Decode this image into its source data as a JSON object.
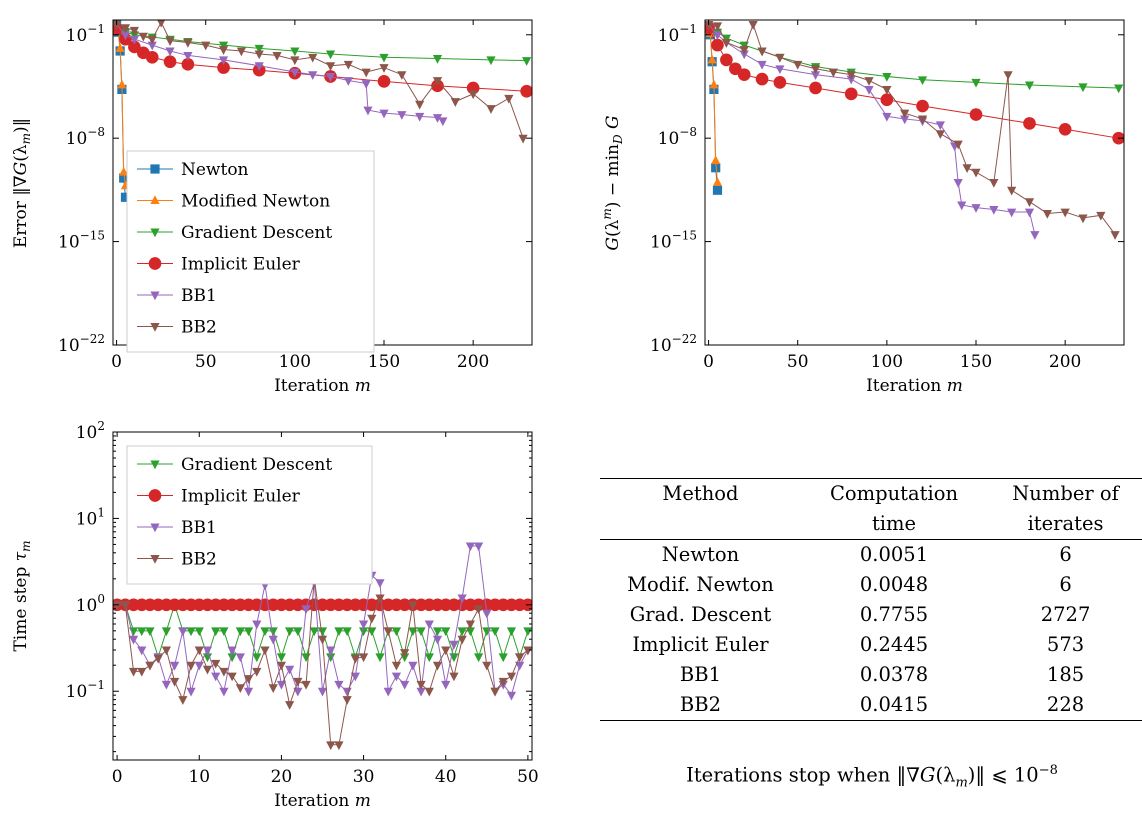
{
  "colors": {
    "Newton": "#1f77b4",
    "Modified Newton": "#ff7f0e",
    "Gradient Descent": "#2ca02c",
    "Implicit Euler": "#d62728",
    "BB1": "#9467bd",
    "BB2": "#8c564b"
  },
  "markers": {
    "Newton": "square",
    "Modified Newton": "triangle-up",
    "Gradient Descent": "triangle-down",
    "Implicit Euler": "circle",
    "BB1": "triangle-down",
    "BB2": "triangle-down"
  },
  "chart_data": [
    {
      "type": "line",
      "yscale": "log",
      "xlabel": "Iteration m",
      "ylabel": "Error ‖∇G(λ_m)‖",
      "xlim": [
        -2,
        233
      ],
      "ylim": [
        1e-22,
        1
      ],
      "xticks": [
        0,
        50,
        100,
        150,
        200
      ],
      "yticks": [
        {
          "v": 0.1,
          "label": "10^-1"
        },
        {
          "v": 1e-08,
          "label": "10^-8"
        },
        {
          "v": 1e-15,
          "label": "10^-15"
        },
        {
          "v": 1e-22,
          "label": "10^-22"
        }
      ],
      "legend": {
        "placement": "lower-left",
        "entries": [
          "Newton",
          "Modified Newton",
          "Gradient Descent",
          "Implicit Euler",
          "BB1",
          "BB2"
        ]
      },
      "series": [
        {
          "name": "Newton",
          "x": [
            0,
            1,
            2,
            3,
            4,
            5
          ],
          "y": [
            0.5,
            0.15,
            0.008,
            2e-05,
            2e-11,
            1e-12
          ]
        },
        {
          "name": "Modified Newton",
          "x": [
            0,
            1,
            2,
            3,
            4,
            5
          ],
          "y": [
            0.5,
            0.2,
            0.012,
            4e-05,
            5e-11,
            6e-12
          ]
        },
        {
          "name": "Gradient Descent",
          "x": [
            0,
            5,
            10,
            20,
            30,
            40,
            60,
            80,
            100,
            120,
            150,
            180,
            210,
            230
          ],
          "y": [
            0.4,
            0.15,
            0.1,
            0.07,
            0.05,
            0.035,
            0.02,
            0.012,
            0.008,
            0.005,
            0.003,
            0.0025,
            0.002,
            0.0018
          ]
        },
        {
          "name": "Implicit Euler",
          "x": [
            0,
            5,
            10,
            15,
            20,
            30,
            40,
            60,
            80,
            100,
            120,
            150,
            180,
            200,
            230
          ],
          "y": [
            0.25,
            0.05,
            0.015,
            0.006,
            0.003,
            0.0015,
            0.001,
            0.0006,
            0.0004,
            0.00025,
            0.00015,
            7e-05,
            3.5e-05,
            2.5e-05,
            1.5e-05
          ]
        },
        {
          "name": "BB1",
          "x": [
            0,
            5,
            10,
            20,
            30,
            40,
            60,
            80,
            100,
            110,
            120,
            130,
            140,
            141,
            150,
            160,
            170,
            180,
            183
          ],
          "y": [
            0.5,
            0.1,
            0.05,
            0.02,
            0.008,
            0.004,
            0.002,
            0.0008,
            0.0003,
            0.0002,
            0.00015,
            8e-05,
            5e-05,
            8e-07,
            5e-07,
            4e-07,
            3e-07,
            2.5e-07,
            1.5e-07
          ]
        },
        {
          "name": "BB2",
          "x": [
            0,
            5,
            10,
            15,
            20,
            25,
            30,
            40,
            50,
            60,
            70,
            80,
            90,
            100,
            110,
            120,
            130,
            140,
            150,
            160,
            170,
            180,
            190,
            200,
            210,
            220,
            228
          ],
          "y": [
            0.5,
            0.3,
            0.2,
            0.08,
            0.05,
            0.7,
            0.04,
            0.03,
            0.02,
            0.01,
            0.008,
            0.005,
            0.004,
            0.002,
            0.003,
            0.0008,
            0.001,
            0.0003,
            0.0006,
            0.0002,
            2e-06,
            8e-05,
            3e-06,
            1e-05,
            1e-06,
            5e-06,
            1e-08
          ]
        }
      ]
    },
    {
      "type": "line",
      "yscale": "log",
      "xlabel": "Iteration m",
      "ylabel": "G(λ^m) − min_D G",
      "xlim": [
        -2,
        233
      ],
      "ylim": [
        1e-22,
        1
      ],
      "xticks": [
        0,
        50,
        100,
        150,
        200
      ],
      "yticks": [
        {
          "v": 0.1,
          "label": "10^-1"
        },
        {
          "v": 1e-08,
          "label": "10^-8"
        },
        {
          "v": 1e-15,
          "label": "10^-15"
        },
        {
          "v": 1e-22,
          "label": "10^-22"
        }
      ],
      "series": [
        {
          "name": "Newton",
          "x": [
            0,
            1,
            2,
            3,
            4,
            5
          ],
          "y": [
            0.3,
            0.1,
            0.0015,
            2e-05,
            1e-10,
            3e-12
          ]
        },
        {
          "name": "Modified Newton",
          "x": [
            0,
            1,
            2,
            3,
            4,
            5
          ],
          "y": [
            0.3,
            0.12,
            0.002,
            4e-05,
            3e-10,
            1e-11
          ]
        },
        {
          "name": "Gradient Descent",
          "x": [
            0,
            5,
            10,
            20,
            30,
            40,
            60,
            80,
            100,
            120,
            150,
            180,
            210,
            230
          ],
          "y": [
            0.4,
            0.15,
            0.06,
            0.02,
            0.008,
            0.003,
            0.0007,
            0.0003,
            0.00015,
            9e-05,
            6e-05,
            4e-05,
            3e-05,
            2.5e-05
          ]
        },
        {
          "name": "Implicit Euler",
          "x": [
            0,
            5,
            10,
            15,
            20,
            30,
            40,
            60,
            80,
            100,
            120,
            150,
            180,
            200,
            230
          ],
          "y": [
            0.3,
            0.02,
            0.002,
            0.0005,
            0.0002,
            0.0001,
            6e-05,
            2.5e-05,
            1e-05,
            4e-06,
            1.5e-06,
            4e-07,
            1e-07,
            4e-08,
            1e-08
          ]
        },
        {
          "name": "BB1",
          "x": [
            0,
            5,
            10,
            20,
            30,
            40,
            60,
            80,
            90,
            100,
            110,
            120,
            130,
            138,
            140,
            142,
            150,
            160,
            170,
            180,
            183
          ],
          "y": [
            0.5,
            0.1,
            0.03,
            0.005,
            0.001,
            0.0005,
            0.0002,
            0.0001,
            2e-05,
            3e-07,
            2e-07,
            1.5e-07,
            8e-08,
            3e-09,
            1e-11,
            3e-13,
            2e-13,
            1.5e-13,
            1e-13,
            1e-13,
            3e-15
          ]
        },
        {
          "name": "BB2",
          "x": [
            0,
            5,
            10,
            20,
            25,
            30,
            40,
            50,
            60,
            70,
            80,
            90,
            100,
            110,
            120,
            130,
            140,
            145,
            150,
            160,
            168,
            170,
            180,
            190,
            200,
            210,
            220,
            228
          ],
          "y": [
            0.5,
            0.4,
            0.03,
            0.01,
            0.5,
            0.008,
            0.003,
            0.001,
            0.0005,
            0.0003,
            0.0002,
            8e-05,
            2e-05,
            5e-07,
            2e-07,
            2e-08,
            4e-09,
            1e-10,
            5e-11,
            1e-11,
            0.0002,
            3e-12,
            5e-13,
            8e-14,
            1e-13,
            4e-14,
            6e-14,
            3e-15
          ]
        }
      ]
    },
    {
      "type": "line",
      "yscale": "log",
      "xlabel": "Iteration m",
      "ylabel": "Time step τ_m",
      "xlim": [
        -0.5,
        50.5
      ],
      "ylim": [
        0.016,
        100
      ],
      "xticks": [
        0,
        10,
        20,
        30,
        40,
        50
      ],
      "yticks": [
        {
          "v": 100,
          "label": "10^2"
        },
        {
          "v": 10,
          "label": "10^1"
        },
        {
          "v": 1,
          "label": "10^0"
        },
        {
          "v": 0.1,
          "label": "10^-1"
        }
      ],
      "legend": {
        "placement": "upper-left",
        "entries": [
          "Gradient Descent",
          "Implicit Euler",
          "BB1",
          "BB2"
        ]
      },
      "series": [
        {
          "name": "Gradient Descent",
          "x": [
            0,
            1,
            2,
            3,
            4,
            5,
            6,
            7,
            8,
            9,
            10,
            11,
            12,
            13,
            14,
            15,
            16,
            17,
            18,
            19,
            20,
            21,
            22,
            23,
            24,
            25,
            26,
            27,
            28,
            29,
            30,
            31,
            32,
            33,
            34,
            35,
            36,
            37,
            38,
            39,
            40,
            41,
            42,
            43,
            44,
            45,
            46,
            47,
            48,
            49,
            50
          ],
          "y": [
            1,
            1,
            0.5,
            0.5,
            0.5,
            0.25,
            0.5,
            1,
            0.5,
            0.5,
            0.5,
            0.25,
            0.5,
            0.5,
            0.25,
            0.5,
            0.5,
            0.25,
            0.5,
            0.5,
            0.25,
            0.5,
            0.5,
            0.25,
            0.5,
            0.5,
            0.25,
            0.5,
            0.5,
            0.25,
            0.5,
            0.5,
            0.25,
            0.5,
            0.5,
            0.25,
            0.5,
            0.5,
            0.25,
            0.5,
            0.5,
            0.25,
            0.5,
            0.5,
            0.25,
            0.5,
            0.5,
            0.25,
            0.5,
            0.25,
            0.5
          ]
        },
        {
          "name": "Implicit Euler",
          "x": [
            0,
            1,
            2,
            3,
            4,
            5,
            6,
            7,
            8,
            9,
            10,
            11,
            12,
            13,
            14,
            15,
            16,
            17,
            18,
            19,
            20,
            21,
            22,
            23,
            24,
            25,
            26,
            27,
            28,
            29,
            30,
            31,
            32,
            33,
            34,
            35,
            36,
            37,
            38,
            39,
            40,
            41,
            42,
            43,
            44,
            45,
            46,
            47,
            48,
            49,
            50
          ],
          "y": [
            1,
            1,
            1,
            1,
            1,
            1,
            1,
            1,
            1,
            1,
            1,
            1,
            1,
            1,
            1,
            1,
            1,
            1,
            1,
            1,
            1,
            1,
            1,
            1,
            1,
            1,
            1,
            1,
            1,
            1,
            1,
            1,
            1,
            1,
            1,
            1,
            1,
            1,
            1,
            1,
            1,
            1,
            1,
            1,
            1,
            1,
            1,
            1,
            1,
            1,
            1
          ]
        },
        {
          "name": "BB1",
          "x": [
            0,
            1,
            2,
            3,
            4,
            5,
            6,
            7,
            8,
            9,
            10,
            11,
            12,
            13,
            14,
            15,
            16,
            17,
            18,
            19,
            20,
            21,
            22,
            23,
            24,
            25,
            26,
            27,
            28,
            29,
            30,
            31,
            32,
            33,
            34,
            35,
            36,
            37,
            38,
            39,
            40,
            41,
            42,
            43,
            44,
            45,
            46,
            47,
            48,
            49,
            50
          ],
          "y": [
            1,
            1,
            0.4,
            0.3,
            0.2,
            0.25,
            0.12,
            0.2,
            0.5,
            0.1,
            0.2,
            0.3,
            0.15,
            0.1,
            0.3,
            0.25,
            0.1,
            0.6,
            1.7,
            0.4,
            0.12,
            0.18,
            0.1,
            0.9,
            1.8,
            0.1,
            0.3,
            0.12,
            0.1,
            0.15,
            0.6,
            2.2,
            1.8,
            0.1,
            0.15,
            0.12,
            0.2,
            0.1,
            0.6,
            0.4,
            0.12,
            0.35,
            1.2,
            4.8,
            4.8,
            0.8,
            0.1,
            0.12,
            0.09,
            0.2,
            0.3
          ]
        },
        {
          "name": "BB2",
          "x": [
            0,
            1,
            2,
            3,
            4,
            5,
            6,
            7,
            8,
            9,
            10,
            11,
            12,
            13,
            14,
            15,
            16,
            17,
            18,
            19,
            20,
            21,
            22,
            23,
            24,
            25,
            26,
            27,
            28,
            29,
            30,
            31,
            32,
            33,
            34,
            35,
            36,
            37,
            38,
            39,
            40,
            41,
            42,
            43,
            44,
            45,
            46,
            47,
            48,
            49,
            50
          ],
          "y": [
            1,
            1,
            0.17,
            0.17,
            0.2,
            0.24,
            0.3,
            0.13,
            0.08,
            0.2,
            0.3,
            0.18,
            0.21,
            0.17,
            0.15,
            0.11,
            0.14,
            0.17,
            0.3,
            0.11,
            0.2,
            0.07,
            0.13,
            0.12,
            2.0,
            0.4,
            0.024,
            0.024,
            0.08,
            0.24,
            0.25,
            0.7,
            1.2,
            0.5,
            0.2,
            0.28,
            1.0,
            0.12,
            0.1,
            0.2,
            0.3,
            0.15,
            0.4,
            0.6,
            0.9,
            0.2,
            0.1,
            0.13,
            0.15,
            0.25,
            0.3
          ]
        }
      ]
    }
  ],
  "panel_labels": {
    "p1_ylabel_prefix": "Error ‖∇",
    "p1_ylabel_mid": "G",
    "p1_ylabel_suffix": "(λ",
    "p1_ylabel_sub": "m",
    "p1_ylabel_end": ")‖",
    "p2_ylabel_a": "G",
    "p2_ylabel_b": "(λ",
    "p2_ylabel_sup": "m",
    "p2_ylabel_c": ") − min",
    "p2_ylabel_sub": "D",
    "p2_ylabel_d": " G",
    "p3_ylabel_a": "Time step ",
    "p3_ylabel_b": "τ",
    "p3_ylabel_sub": "m",
    "xlabel_a": "Iteration ",
    "xlabel_b": "m"
  },
  "table": {
    "headers": [
      [
        "Method",
        "Computation",
        "Number of"
      ],
      [
        "",
        "time",
        "iterates"
      ]
    ],
    "rows": [
      [
        "Newton",
        "0.0051",
        "6"
      ],
      [
        "Modif. Newton",
        "0.0048",
        "6"
      ],
      [
        "Grad. Descent",
        "0.7755",
        "2727"
      ],
      [
        "Implicit Euler",
        "0.2445",
        "573"
      ],
      [
        "BB1",
        "0.0378",
        "185"
      ],
      [
        "BB2",
        "0.0415",
        "228"
      ]
    ],
    "footnote_a": "Iterations stop when ‖∇",
    "footnote_b": "G",
    "footnote_c": "(λ",
    "footnote_sub": "m",
    "footnote_d": ")‖ ⩽ 10",
    "footnote_sup": "−8"
  }
}
